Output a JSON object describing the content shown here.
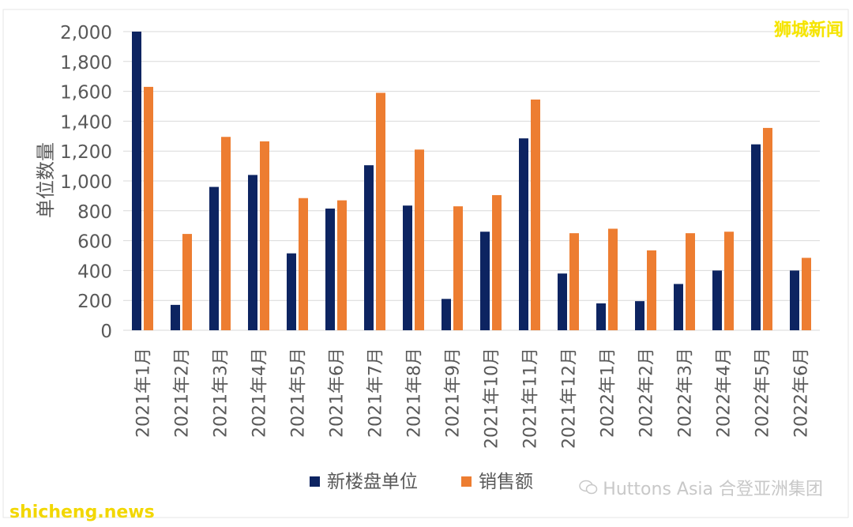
{
  "watermarks": {
    "top_right": "狮城新闻",
    "bottom_left": "shicheng.news",
    "source": "Huttons Asia 合登亚洲集团"
  },
  "chart_data": {
    "type": "bar",
    "title": "",
    "xlabel": "",
    "ylabel": "单位数量",
    "ylim": [
      0,
      2000
    ],
    "yticks": [
      0,
      200,
      400,
      600,
      800,
      1000,
      1200,
      1400,
      1600,
      1800,
      2000
    ],
    "ytick_labels": [
      "0",
      "200",
      "400",
      "600",
      "800",
      "1,000",
      "1,200",
      "1,400",
      "1,600",
      "1,800",
      "2,000"
    ],
    "grid": true,
    "legend_position": "bottom",
    "categories": [
      "2021年1月",
      "2021年2月",
      "2021年3月",
      "2021年4月",
      "2021年5月",
      "2021年6月",
      "2021年7月",
      "2021年8月",
      "2021年9月",
      "2021年10月",
      "2021年11月",
      "2021年12月",
      "2022年1月",
      "2022年2月",
      "2022年3月",
      "2022年4月",
      "2022年5月",
      "2022年6月"
    ],
    "series": [
      {
        "name": "新楼盘单位",
        "color": "#0d2461",
        "values": [
          2000,
          170,
          960,
          1040,
          515,
          815,
          1105,
          835,
          210,
          660,
          1285,
          380,
          180,
          195,
          310,
          400,
          1245,
          400
        ]
      },
      {
        "name": "销售额",
        "color": "#ed7d31",
        "values": [
          1630,
          645,
          1295,
          1265,
          885,
          870,
          1590,
          1210,
          830,
          905,
          1545,
          650,
          680,
          535,
          650,
          660,
          1355,
          485
        ]
      }
    ]
  }
}
